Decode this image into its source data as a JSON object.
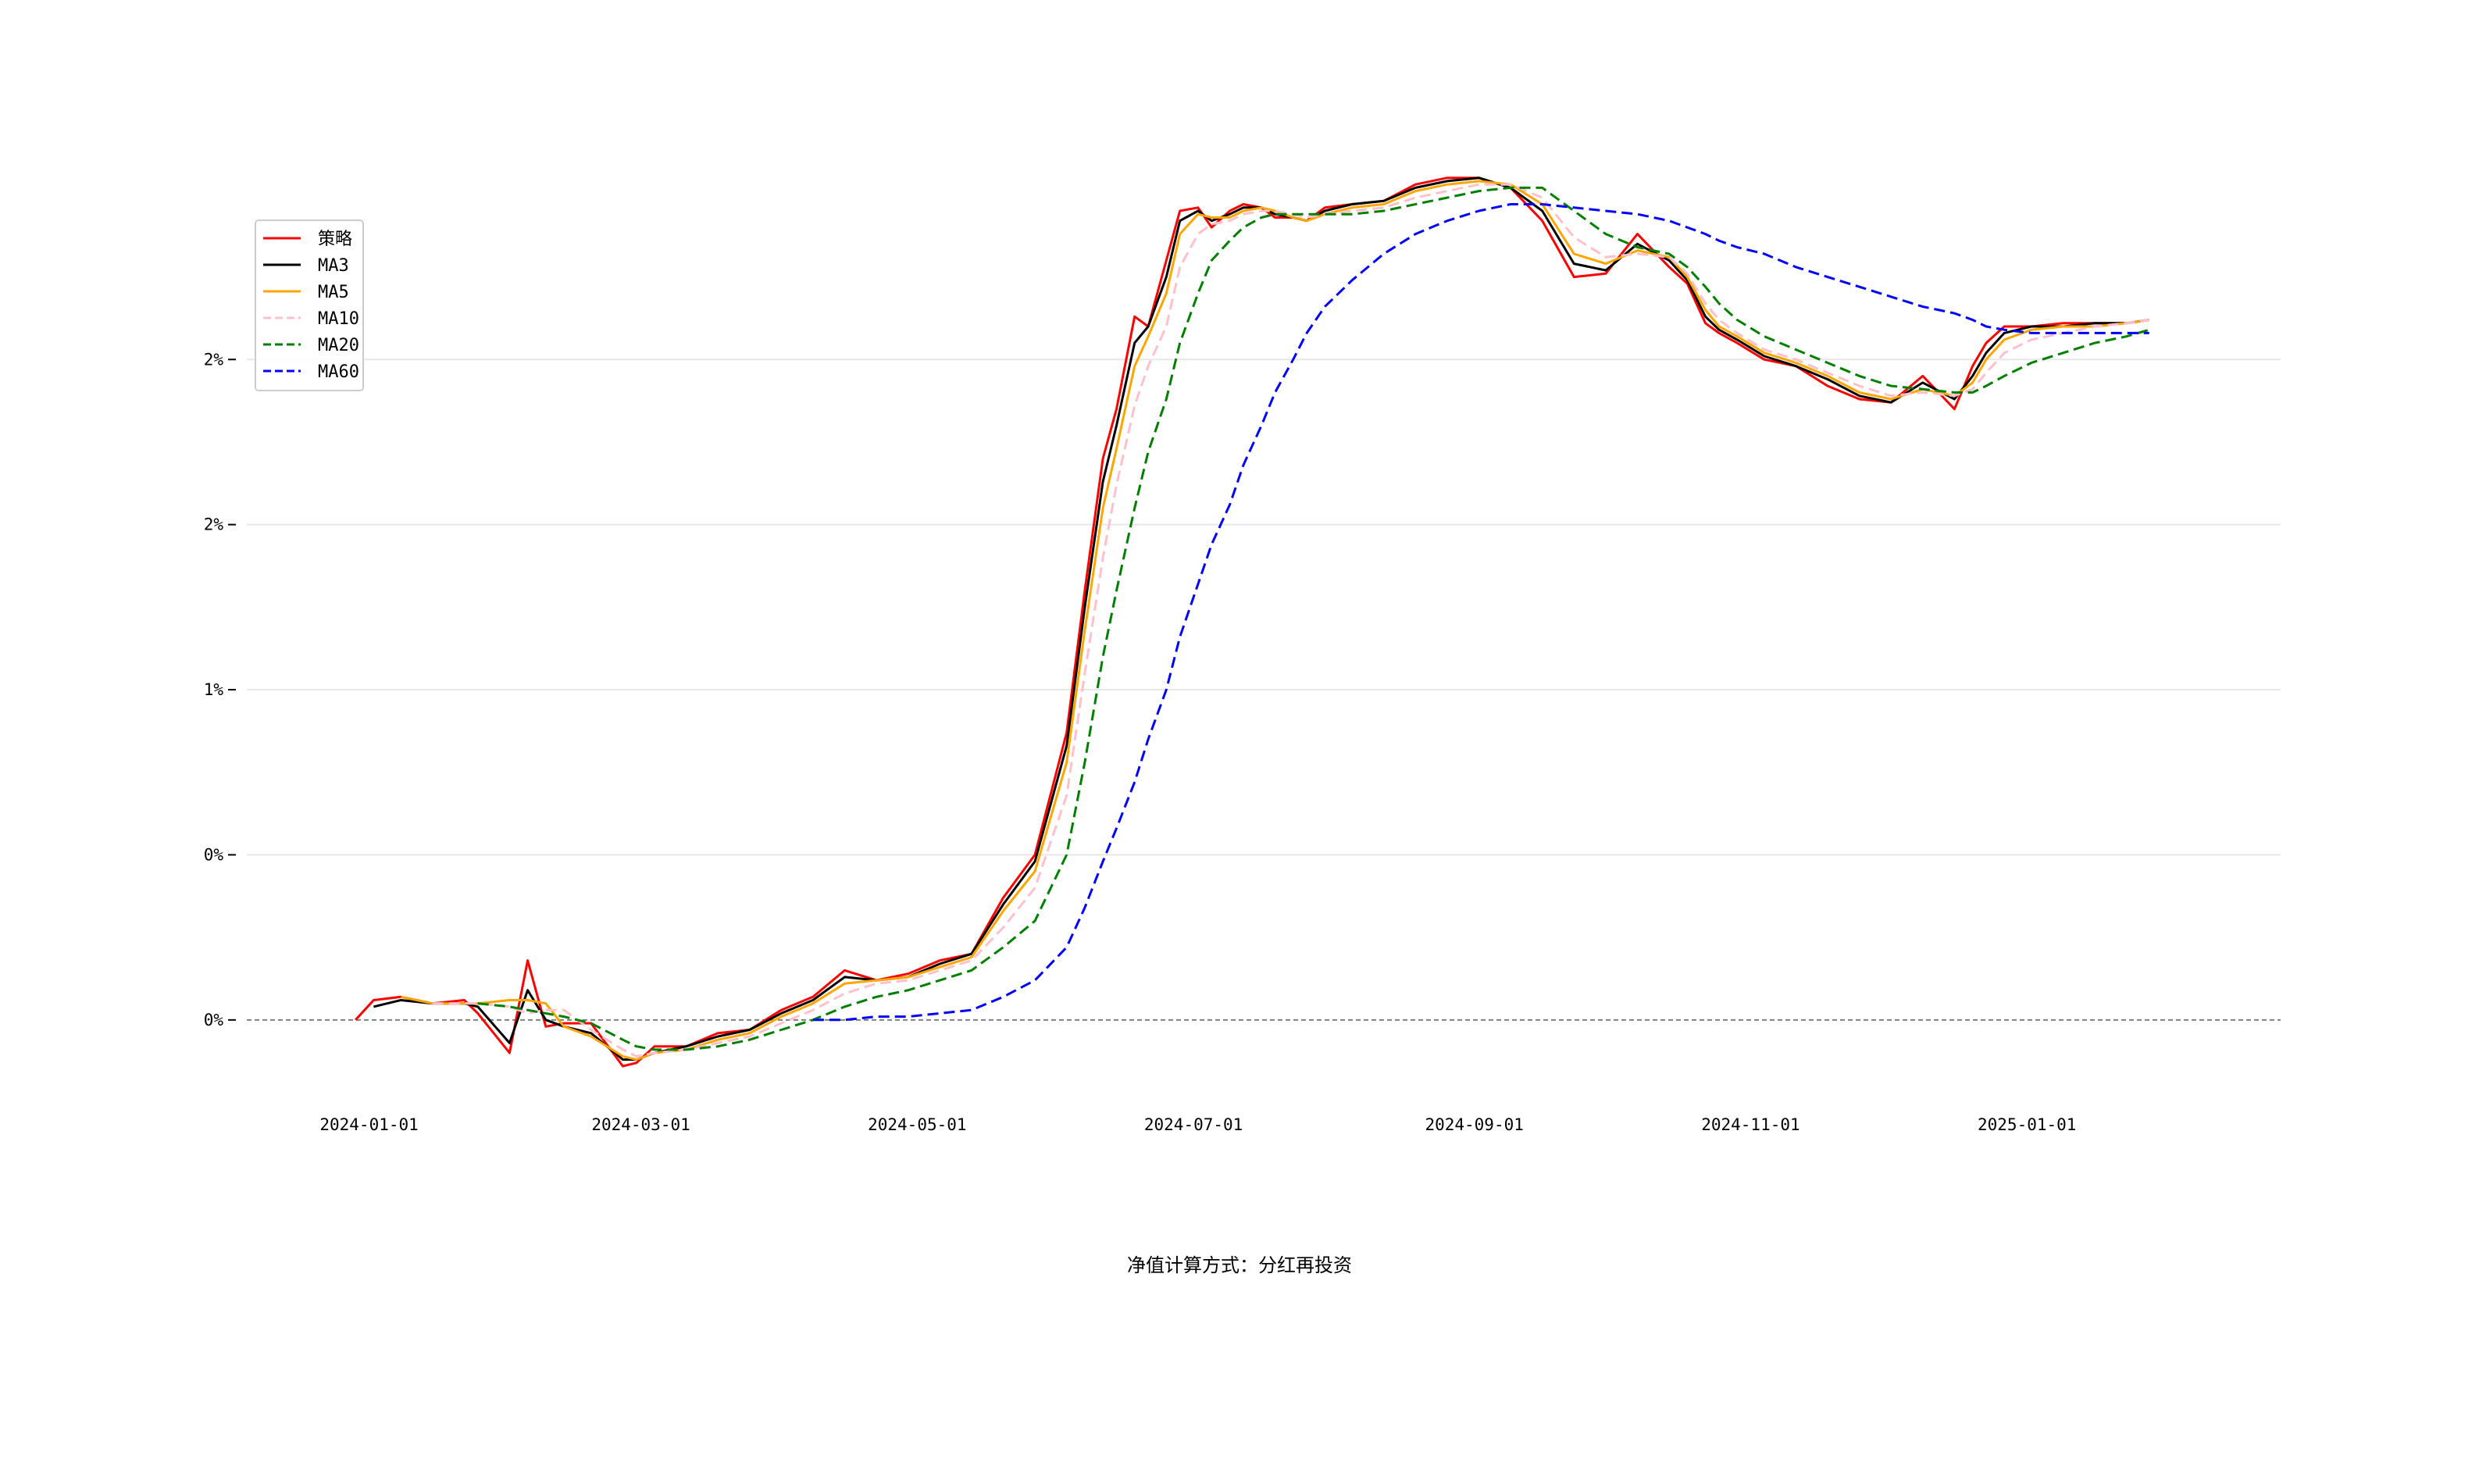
{
  "chart_data": {
    "type": "line",
    "title": "",
    "xlabel": "",
    "ylabel": "",
    "caption": "净值计算方式：分红再投资",
    "x_ticks": [
      "2024-01-01",
      "2024-03-01",
      "2024-05-01",
      "2024-07-01",
      "2024-09-01",
      "2024-11-01",
      "2025-01-01"
    ],
    "y_ticks": [
      "0%",
      "0%",
      "1%",
      "2%",
      "2%"
    ],
    "y_tick_values": [
      0,
      0.5,
      1.0,
      1.5,
      2.0
    ],
    "xlim": [
      "2023-12-05",
      "2025-02-26"
    ],
    "ylim": [
      -0.27,
      2.45
    ],
    "grid": "horizontal",
    "baseline": 0,
    "legend_position": "top-left",
    "dates": [
      "2023-12-29",
      "2024-01-02",
      "2024-01-08",
      "2024-01-15",
      "2024-01-22",
      "2024-01-25",
      "2024-02-01",
      "2024-02-05",
      "2024-02-09",
      "2024-02-13",
      "2024-02-19",
      "2024-02-26",
      "2024-02-29",
      "2024-03-04",
      "2024-03-11",
      "2024-03-18",
      "2024-03-25",
      "2024-04-01",
      "2024-04-08",
      "2024-04-15",
      "2024-04-22",
      "2024-04-29",
      "2024-05-06",
      "2024-05-13",
      "2024-05-20",
      "2024-05-27",
      "2024-06-03",
      "2024-06-07",
      "2024-06-11",
      "2024-06-14",
      "2024-06-18",
      "2024-06-21",
      "2024-06-25",
      "2024-06-28",
      "2024-07-02",
      "2024-07-05",
      "2024-07-09",
      "2024-07-12",
      "2024-07-16",
      "2024-07-19",
      "2024-07-23",
      "2024-07-26",
      "2024-07-30",
      "2024-08-05",
      "2024-08-12",
      "2024-08-19",
      "2024-08-26",
      "2024-09-02",
      "2024-09-09",
      "2024-09-16",
      "2024-09-23",
      "2024-09-30",
      "2024-10-07",
      "2024-10-14",
      "2024-10-18",
      "2024-10-22",
      "2024-10-25",
      "2024-10-29",
      "2024-11-04",
      "2024-11-11",
      "2024-11-18",
      "2024-11-25",
      "2024-12-02",
      "2024-12-09",
      "2024-12-16",
      "2024-12-20",
      "2024-12-23",
      "2024-12-27",
      "2025-01-02",
      "2025-01-09",
      "2025-01-16",
      "2025-01-23",
      "2025-01-28"
    ],
    "series": [
      {
        "name": "策略",
        "color": "#ff0000",
        "dash": "solid",
        "values": [
          0.0,
          0.06,
          0.07,
          0.05,
          0.06,
          0.02,
          -0.1,
          0.18,
          -0.02,
          -0.01,
          -0.01,
          -0.14,
          -0.13,
          -0.08,
          -0.08,
          -0.04,
          -0.03,
          0.03,
          0.07,
          0.15,
          0.12,
          0.14,
          0.18,
          0.2,
          0.37,
          0.5,
          0.87,
          1.3,
          1.7,
          1.85,
          2.13,
          2.1,
          2.3,
          2.45,
          2.46,
          2.4,
          2.45,
          2.47,
          2.46,
          2.43,
          2.43,
          2.42,
          2.46,
          2.47,
          2.48,
          2.53,
          2.55,
          2.55,
          2.52,
          2.42,
          2.25,
          2.26,
          2.38,
          2.28,
          2.23,
          2.11,
          2.08,
          2.05,
          2.0,
          1.98,
          1.92,
          1.88,
          1.87,
          1.95,
          1.85,
          1.98,
          2.05,
          2.1,
          2.1,
          2.11,
          2.11,
          2.11,
          2.12
        ]
      },
      {
        "name": "MA3",
        "color": "#000000",
        "dash": "solid",
        "values": [
          null,
          0.04,
          0.06,
          0.05,
          0.05,
          0.04,
          -0.07,
          0.09,
          0.0,
          -0.02,
          -0.04,
          -0.12,
          -0.12,
          -0.1,
          -0.08,
          -0.05,
          -0.03,
          0.02,
          0.06,
          0.13,
          0.12,
          0.13,
          0.17,
          0.2,
          0.35,
          0.48,
          0.83,
          1.25,
          1.63,
          1.8,
          2.05,
          2.1,
          2.25,
          2.42,
          2.45,
          2.42,
          2.44,
          2.46,
          2.46,
          2.44,
          2.43,
          2.42,
          2.45,
          2.47,
          2.48,
          2.52,
          2.54,
          2.55,
          2.52,
          2.45,
          2.29,
          2.27,
          2.35,
          2.3,
          2.24,
          2.13,
          2.09,
          2.06,
          2.01,
          1.98,
          1.94,
          1.89,
          1.87,
          1.93,
          1.88,
          1.95,
          2.02,
          2.08,
          2.1,
          2.1,
          2.11,
          2.11,
          2.12
        ]
      },
      {
        "name": "MA5",
        "color": "#ffa500",
        "dash": "solid",
        "values": [
          null,
          null,
          0.07,
          0.05,
          0.05,
          0.05,
          0.06,
          0.06,
          0.05,
          -0.02,
          -0.05,
          -0.11,
          -0.12,
          -0.1,
          -0.09,
          -0.06,
          -0.04,
          0.01,
          0.05,
          0.11,
          0.12,
          0.13,
          0.16,
          0.19,
          0.33,
          0.45,
          0.78,
          1.18,
          1.55,
          1.73,
          1.98,
          2.07,
          2.2,
          2.38,
          2.44,
          2.43,
          2.43,
          2.45,
          2.46,
          2.45,
          2.43,
          2.42,
          2.44,
          2.46,
          2.47,
          2.51,
          2.53,
          2.54,
          2.53,
          2.47,
          2.32,
          2.29,
          2.33,
          2.31,
          2.25,
          2.15,
          2.1,
          2.07,
          2.02,
          1.99,
          1.95,
          1.9,
          1.88,
          1.91,
          1.89,
          1.93,
          2.0,
          2.06,
          2.09,
          2.1,
          2.1,
          2.11,
          2.12
        ]
      },
      {
        "name": "MA10",
        "color": "#ffc0cb",
        "dash": "dashed",
        "values": [
          null,
          null,
          null,
          0.05,
          0.05,
          0.05,
          0.04,
          0.02,
          0.03,
          0.03,
          -0.03,
          -0.09,
          -0.11,
          -0.1,
          -0.09,
          -0.07,
          -0.05,
          -0.01,
          0.03,
          0.08,
          0.11,
          0.12,
          0.15,
          0.18,
          0.28,
          0.4,
          0.68,
          1.05,
          1.4,
          1.62,
          1.86,
          1.98,
          2.1,
          2.28,
          2.38,
          2.41,
          2.42,
          2.44,
          2.45,
          2.45,
          2.44,
          2.43,
          2.44,
          2.45,
          2.46,
          2.49,
          2.51,
          2.53,
          2.53,
          2.49,
          2.37,
          2.31,
          2.32,
          2.31,
          2.26,
          2.17,
          2.12,
          2.08,
          2.03,
          2.0,
          1.96,
          1.92,
          1.89,
          1.9,
          1.89,
          1.91,
          1.96,
          2.02,
          2.06,
          2.08,
          2.1,
          2.11,
          2.12
        ]
      },
      {
        "name": "MA20",
        "color": "#008000",
        "dash": "dashed",
        "values": [
          null,
          null,
          null,
          null,
          null,
          0.05,
          0.04,
          0.03,
          0.02,
          0.01,
          -0.01,
          -0.06,
          -0.08,
          -0.09,
          -0.09,
          -0.08,
          -0.06,
          -0.03,
          0.0,
          0.04,
          0.07,
          0.09,
          0.12,
          0.15,
          0.22,
          0.3,
          0.5,
          0.78,
          1.1,
          1.3,
          1.55,
          1.72,
          1.88,
          2.05,
          2.2,
          2.3,
          2.36,
          2.4,
          2.43,
          2.44,
          2.44,
          2.44,
          2.44,
          2.44,
          2.45,
          2.47,
          2.49,
          2.51,
          2.52,
          2.52,
          2.45,
          2.38,
          2.34,
          2.32,
          2.28,
          2.22,
          2.17,
          2.12,
          2.07,
          2.03,
          1.99,
          1.95,
          1.92,
          1.91,
          1.9,
          1.9,
          1.92,
          1.95,
          1.99,
          2.02,
          2.05,
          2.07,
          2.09
        ]
      },
      {
        "name": "MA60",
        "color": "#0000ff",
        "dash": "dashed",
        "values": [
          null,
          null,
          null,
          null,
          null,
          null,
          null,
          null,
          null,
          null,
          null,
          null,
          null,
          null,
          null,
          null,
          null,
          null,
          0.0,
          0.0,
          0.01,
          0.01,
          0.02,
          0.03,
          0.07,
          0.12,
          0.22,
          0.34,
          0.48,
          0.58,
          0.72,
          0.85,
          1.0,
          1.16,
          1.32,
          1.44,
          1.56,
          1.68,
          1.8,
          1.9,
          2.0,
          2.08,
          2.16,
          2.24,
          2.32,
          2.38,
          2.42,
          2.45,
          2.47,
          2.47,
          2.46,
          2.45,
          2.44,
          2.42,
          2.4,
          2.38,
          2.36,
          2.34,
          2.32,
          2.28,
          2.25,
          2.22,
          2.19,
          2.16,
          2.14,
          2.12,
          2.1,
          2.09,
          2.08,
          2.08,
          2.08,
          2.08,
          2.08
        ]
      }
    ]
  }
}
